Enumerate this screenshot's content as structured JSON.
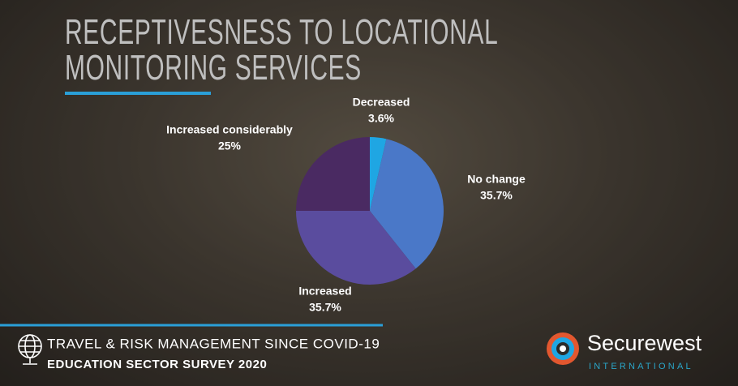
{
  "chart_data": {
    "type": "pie",
    "title": "RECEPTIVESNESS TO LOCATIONAL MONITORING SERVICES",
    "categories": [
      "Decreased",
      "No change",
      "Increased",
      "Increased considerably"
    ],
    "values": [
      3.6,
      35.7,
      35.7,
      25
    ],
    "value_labels": [
      "3.6%",
      "35.7%",
      "35.7%",
      "25%"
    ],
    "colors": [
      "#1fa6e3",
      "#4a78c8",
      "#5a4c9e",
      "#4a2a62"
    ]
  },
  "footer": {
    "line1": "TRAVEL & RISK MANAGEMENT SINCE COVID-19",
    "line2": "EDUCATION SECTOR SURVEY 2020"
  },
  "logo": {
    "name": "Securewest",
    "tagline": "INTERNATIONAL"
  }
}
